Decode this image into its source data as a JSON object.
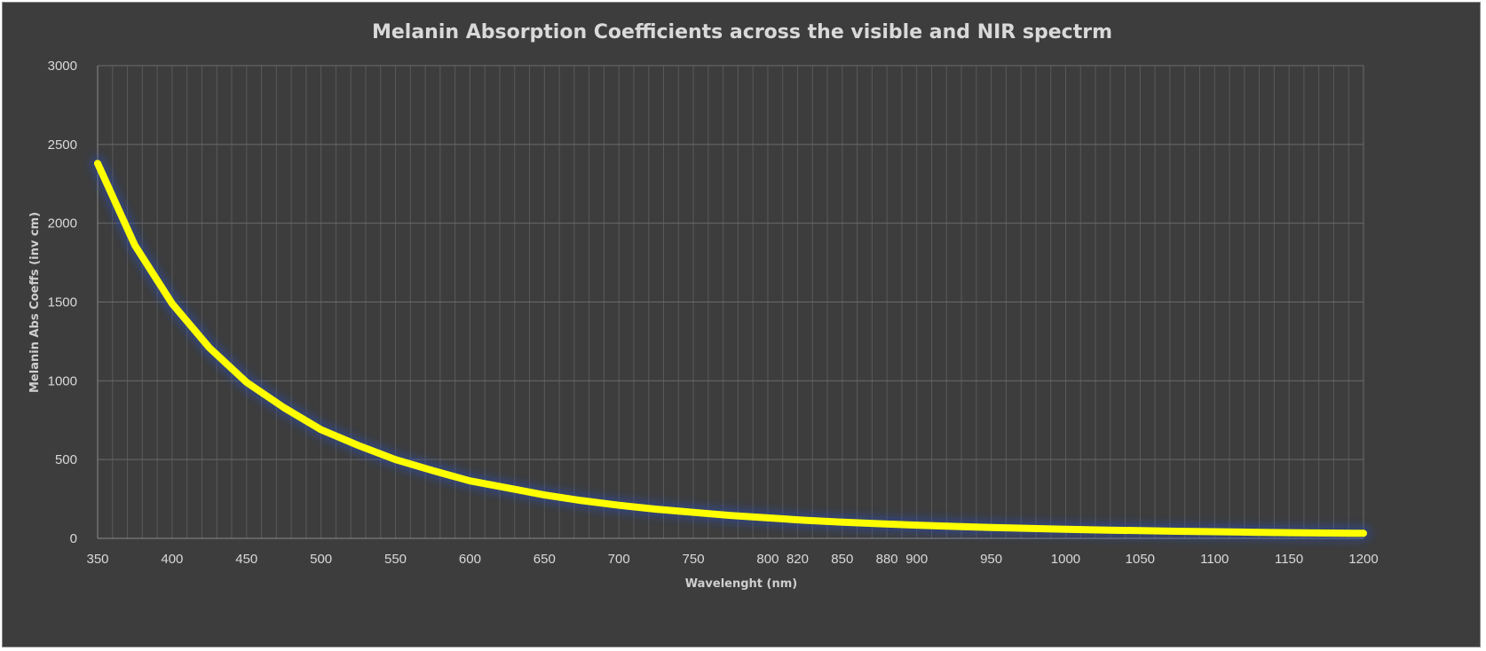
{
  "chart_data": {
    "type": "line",
    "title": "Melanin Absorption Coefficients across the visible and NIR spectrm",
    "xlabel": "Wavelenght (nm)",
    "ylabel": "Melanin Abs Coeffs (inv cm)",
    "xlim": [
      350,
      1200
    ],
    "ylim": [
      0,
      3000
    ],
    "y_ticks": [
      0,
      500,
      1000,
      1500,
      2000,
      2500,
      3000
    ],
    "x_tick_labels": [
      {
        "x": 350,
        "label": "350"
      },
      {
        "x": 400,
        "label": "400"
      },
      {
        "x": 450,
        "label": "450"
      },
      {
        "x": 500,
        "label": "500"
      },
      {
        "x": 550,
        "label": "550"
      },
      {
        "x": 600,
        "label": "600"
      },
      {
        "x": 650,
        "label": "650"
      },
      {
        "x": 700,
        "label": "700"
      },
      {
        "x": 750,
        "label": "750"
      },
      {
        "x": 800,
        "label": "800"
      },
      {
        "x": 820,
        "label": "820"
      },
      {
        "x": 850,
        "label": "850"
      },
      {
        "x": 880,
        "label": "880"
      },
      {
        "x": 900,
        "label": "900"
      },
      {
        "x": 950,
        "label": "950"
      },
      {
        "x": 1000,
        "label": "1000"
      },
      {
        "x": 1050,
        "label": "1050"
      },
      {
        "x": 1100,
        "label": "1100"
      },
      {
        "x": 1150,
        "label": "1150"
      },
      {
        "x": 1200,
        "label": "1200"
      }
    ],
    "grid": true,
    "legend": "none",
    "series": [
      {
        "color": "#ffff00",
        "x": [
          350,
          375,
          400,
          425,
          450,
          475,
          500,
          525,
          550,
          575,
          600,
          625,
          650,
          675,
          700,
          725,
          750,
          775,
          800,
          825,
          850,
          875,
          900,
          925,
          950,
          975,
          1000,
          1025,
          1050,
          1075,
          1100,
          1125,
          1150,
          1175,
          1200
        ],
        "y": [
          2380,
          1860,
          1490,
          1210,
          990,
          830,
          690,
          590,
          500,
          430,
          365,
          320,
          275,
          240,
          210,
          185,
          165,
          145,
          130,
          115,
          103,
          93,
          84,
          76,
          69,
          63,
          58,
          53,
          49,
          45,
          42,
          39,
          36,
          34,
          32
        ]
      }
    ]
  }
}
